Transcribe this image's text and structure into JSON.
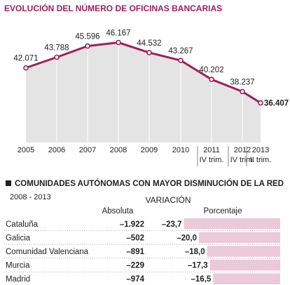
{
  "chart_data": [
    {
      "type": "line",
      "title": "EVOLUCIÓN DEL NÚMERO DE OFICINAS BANCARIAS",
      "categories": [
        "2005",
        "2006",
        "2007",
        "2008",
        "2009",
        "2010",
        "2011\nIV trim.",
        "2012\nIV trim.",
        "2013\nII trim."
      ],
      "series": [
        {
          "color": "#9b2257",
          "values": [
            42071,
            43788,
            45596,
            46167,
            44532,
            43267,
            40202,
            38237,
            36407
          ],
          "value_labels": [
            "42.071",
            "43.788",
            "45.596",
            "46.167",
            "44.532",
            "43.267",
            "40.202",
            "38.237",
            "36.407"
          ]
        }
      ],
      "ylim": [
        30000,
        48000
      ],
      "grid": true,
      "area_color": "#e4e4e4"
    },
    {
      "type": "table-bar",
      "title": "COMUNIDADES AUTÓNOMAS CON MAYOR DISMINUCIÓN DE LA RED",
      "subtitle": "2008 - 2013",
      "header": "VARIACIÓN",
      "categories": [
        "Cataluña",
        "Galicia",
        "Comunidad Valenciana",
        "Murcia",
        "Madrid"
      ],
      "series": [
        {
          "name": "Absoluta",
          "values": [
            -1922,
            -502,
            -891,
            -229,
            -974
          ],
          "value_labels": [
            "–1.922",
            "–502",
            "–891",
            "–229",
            "–974"
          ]
        },
        {
          "name": "Porcentaje",
          "color": "#ecc9d8",
          "values": [
            -23.7,
            -20.0,
            -18.0,
            -17.3,
            -16.5
          ],
          "value_labels": [
            "–23,7",
            "–20,0",
            "–18,0",
            "–17,3",
            "–16,5"
          ]
        }
      ],
      "xlim": [
        -25,
        0
      ]
    }
  ]
}
